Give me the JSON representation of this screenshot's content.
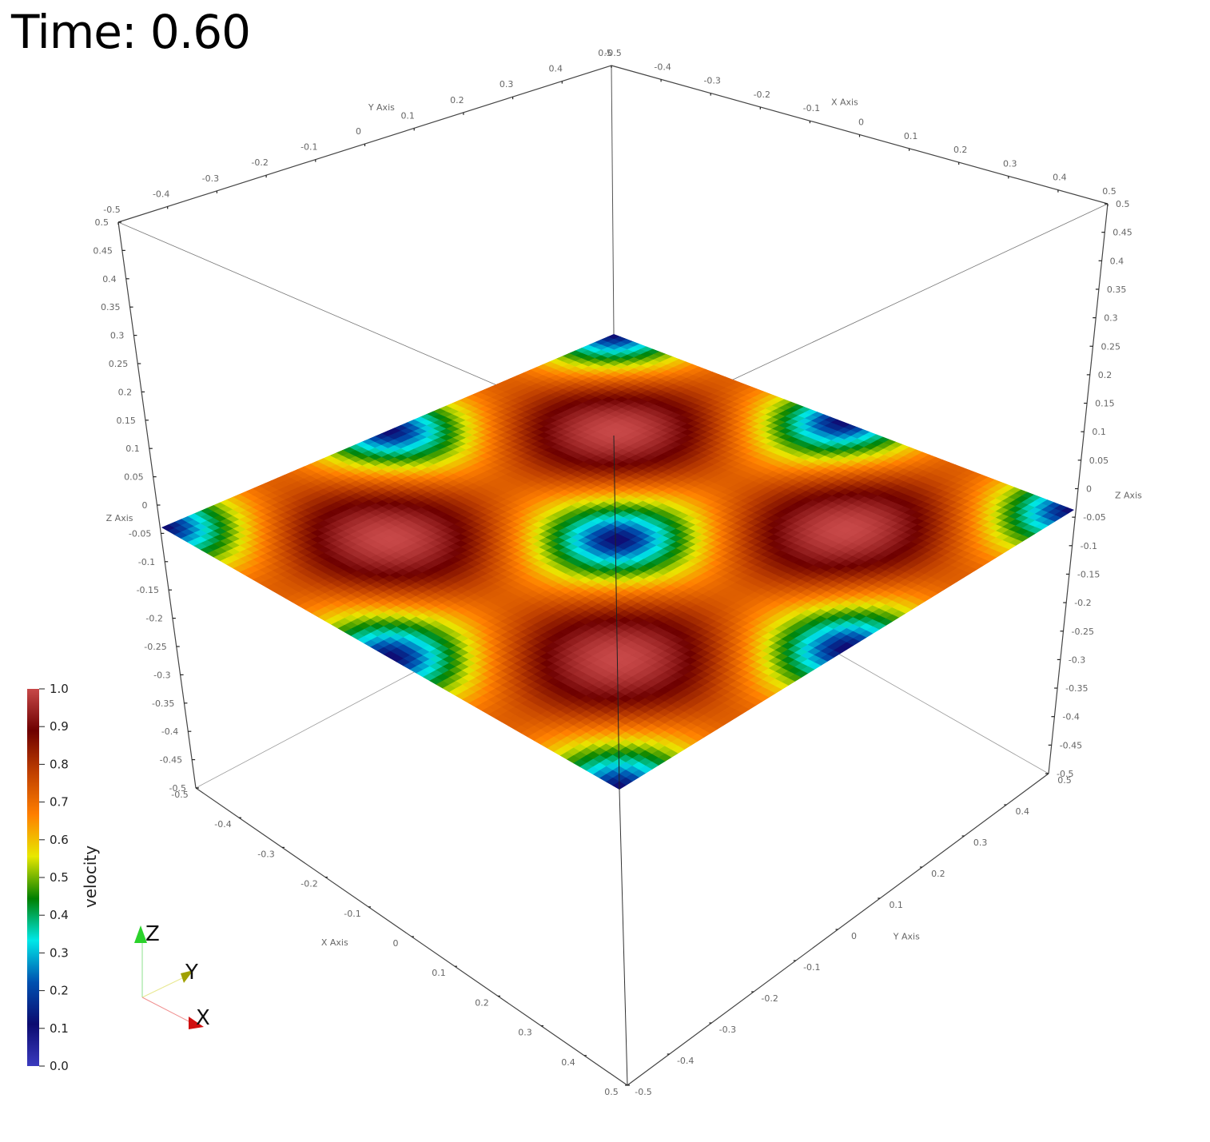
{
  "time_label": "Time: 0.60",
  "field": {
    "name": "velocity",
    "range": [
      0.0,
      1.0
    ],
    "colormap": [
      "#3b3bbf",
      "#0b0b70",
      "#0050b0",
      "#00e8e8",
      "#008000",
      "#e8e800",
      "#ff7f00",
      "#c04000",
      "#6e0000",
      "#c84848"
    ]
  },
  "colorbar": {
    "title": "velocity",
    "ticks": [
      "1.0",
      "0.9",
      "0.8",
      "0.7",
      "0.6",
      "0.5",
      "0.4",
      "0.3",
      "0.2",
      "0.1",
      "0.0"
    ]
  },
  "axes": {
    "x_title": "X Axis",
    "y_title": "Y Axis",
    "z_title": "Z Axis",
    "xy_ticks": [
      "-0.5",
      "-0.4",
      "-0.3",
      "-0.2",
      "-0.1",
      "0",
      "0.1",
      "0.2",
      "0.3",
      "0.4",
      "0.5"
    ],
    "z_ticks": [
      "0.5",
      "0.45",
      "0.4",
      "0.35",
      "0.3",
      "0.25",
      "0.2",
      "0.15",
      "0.1",
      "0.05",
      "0",
      "-0.05",
      "-0.1",
      "-0.15",
      "-0.2",
      "-0.25",
      "-0.3",
      "-0.35",
      "-0.4",
      "-0.45",
      "-0.5"
    ]
  },
  "orientation": {
    "x": "X",
    "y": "Y",
    "z": "Z"
  }
}
